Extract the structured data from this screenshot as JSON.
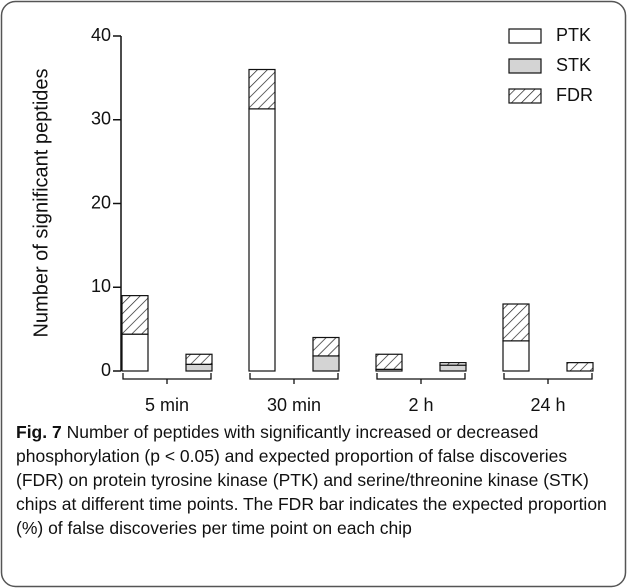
{
  "chart_data": {
    "type": "stacked-bar",
    "ylabel": "Number of significant peptides",
    "categories": [
      "5 min",
      "30 min",
      "2 h",
      "24 h"
    ],
    "series": [
      {
        "name": "PTK",
        "color": "#ffffff",
        "values": [
          4.4,
          31.3,
          0.2,
          3.6
        ]
      },
      {
        "name": "STK",
        "color": "#d4d4d4",
        "values": [
          0.8,
          1.8,
          0.7,
          0
        ]
      },
      {
        "name": "FDR",
        "color": "#ffffff",
        "hatch": true,
        "values": [
          [
            4.6,
            1.2
          ],
          [
            4.7,
            2.2
          ],
          [
            1.8,
            0.3
          ],
          [
            4.4,
            1
          ]
        ]
      }
    ],
    "ylim": [
      0,
      40
    ],
    "yticks": [
      0,
      10,
      20,
      30,
      40
    ],
    "legend": "top-right"
  },
  "caption": {
    "label": "Fig. 7",
    "text": "Number of peptides with significantly increased or decreased phosphorylation (p < 0.05) and expected proportion of false discoveries (FDR) on protein tyrosine kinase (PTK) and serine/threonine kinase (STK) chips at different time points. The FDR bar indicates the expected proportion (%) of false discoveries per time point on each chip"
  }
}
